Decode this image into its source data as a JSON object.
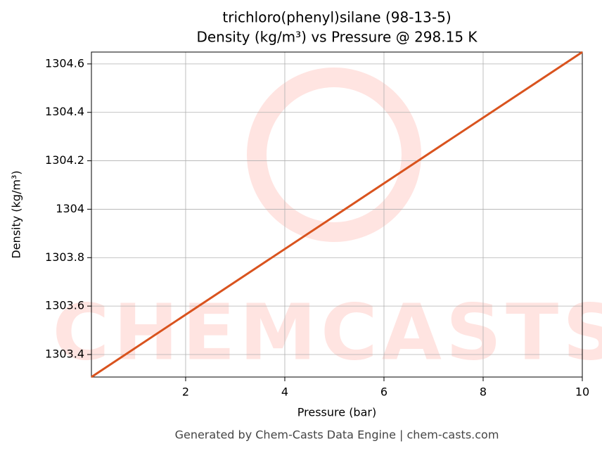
{
  "chart_data": {
    "type": "line",
    "title": "trichloro(phenyl)silane (98-13-5)",
    "subtitle": "Density (kg/m³) vs Pressure @ 298.15 K",
    "x_label": "Pressure (bar)",
    "y_label": "Density (kg/m³)",
    "footer": "Generated by Chem-Casts Data Engine | chem-casts.com",
    "watermark": "CHEMCASTS",
    "x": [
      0.1,
      10
    ],
    "series": [
      {
        "name": "Density",
        "color": "#d9531e",
        "values": [
          1303.307,
          1304.649
        ]
      }
    ],
    "xlim": [
      0.1,
      10
    ],
    "ylim": [
      1303.307,
      1304.649
    ],
    "xticks": [
      2,
      4,
      6,
      8,
      10
    ],
    "yticks": [
      1303.4,
      1303.6,
      1303.8,
      1304.0,
      1304.2,
      1304.4,
      1304.6
    ],
    "grid": true
  }
}
